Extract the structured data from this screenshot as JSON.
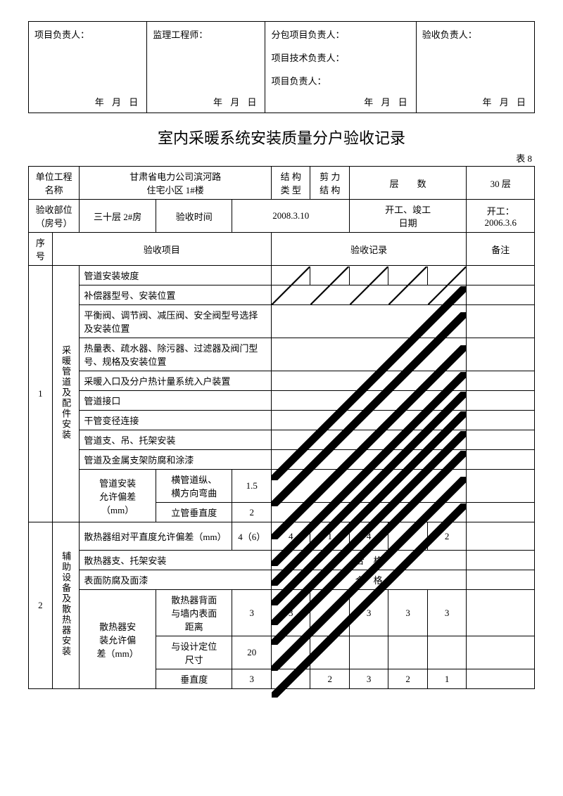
{
  "signature_block": {
    "cells": [
      {
        "lines": [
          "项目负责人："
        ]
      },
      {
        "lines": [
          "监理工程师："
        ]
      },
      {
        "lines": [
          "分包项目负责人：",
          "项目技术负责人：",
          "项目负责人："
        ]
      },
      {
        "lines": [
          "验收负责人："
        ]
      }
    ],
    "date_text": "年   月   日"
  },
  "title": "室内采暖系统安装质量分户验收记录",
  "table_no": "表 8",
  "header": {
    "labels": {
      "project_name": "单位工程名称",
      "struct_type": "结 构\n类 型",
      "shear_struct": "剪 力\n结 构",
      "floors_label": "层　　数",
      "accept_part": "验收部位\n（房号）",
      "accept_time": "验收时间",
      "date_label": "开工、竣工\n日期",
      "seq": "序\n号",
      "item": "验收项目",
      "record": "验收记录",
      "remark": "备注"
    },
    "project_name_value": "甘肃省电力公司滨河路\n住宅小区 1#楼",
    "floors_value": "30 层",
    "accept_part_value": "三十层 2#房",
    "accept_time_value": "2008.3.10",
    "date_value": "开工：\n2006.3.6"
  },
  "section1": {
    "num": "1",
    "group_label": "采暖管道及配件安装",
    "rows": [
      {
        "label": "管道安装坡度",
        "diag": 5
      },
      {
        "label": "补偿器型号、安装位置",
        "diag": 1
      },
      {
        "label": "平衡阀、调节阀、减压阀、安全阀型号选择及安装位置",
        "diag": 1
      },
      {
        "label": "热量表、疏水器、除污器、过滤器及阀门型号、规格及安装位置",
        "diag": 1
      },
      {
        "label": "采暖入口及分户热计量系统入户装置",
        "diag": 1
      },
      {
        "label": "管道接口",
        "diag": 1
      },
      {
        "label": "干管变径连接",
        "diag": 1
      },
      {
        "label": "管道支、吊、托架安装",
        "diag": 1
      },
      {
        "label": "管道及金属支架防腐和涂漆",
        "diag": 1
      }
    ],
    "tolerance": {
      "group_label": "管道安装\n允许偏差\n（mm）",
      "sub": [
        {
          "label": "横管道纵、\n横方向弯曲",
          "val": "1.5",
          "diag": 1
        },
        {
          "label": "立管垂直度",
          "val": "2",
          "diag": 1
        }
      ]
    }
  },
  "section2": {
    "num": "2",
    "group_label": "辅助设备及散热器安装",
    "rows": [
      {
        "label": "散热器组对平直度允许偏差（mm）",
        "val": "4（6）",
        "cells": [
          "4",
          "1",
          "4",
          "3",
          "2"
        ]
      },
      {
        "label": "散热器支、托架安装",
        "merged_text": "合　格"
      },
      {
        "label": "表面防腐及面漆",
        "merged_text": "合　格"
      }
    ],
    "tolerance": {
      "group_label": "散热器安\n装允许偏\n差（mm）",
      "sub": [
        {
          "label": "散热器背面\n与墙内表面\n距离",
          "val": "3",
          "cells": [
            "3",
            "3",
            "3",
            "3",
            "3"
          ]
        },
        {
          "label": "与设计定位\n尺寸",
          "val": "20",
          "cells": [
            "",
            "",
            "",
            "",
            ""
          ]
        },
        {
          "label": "垂直度",
          "val": "3",
          "cells": [
            "3",
            "2",
            "3",
            "2",
            "1"
          ]
        }
      ]
    }
  },
  "style": {
    "border_color": "#000000",
    "row_height_std": 28,
    "row_height_tall": 40
  }
}
